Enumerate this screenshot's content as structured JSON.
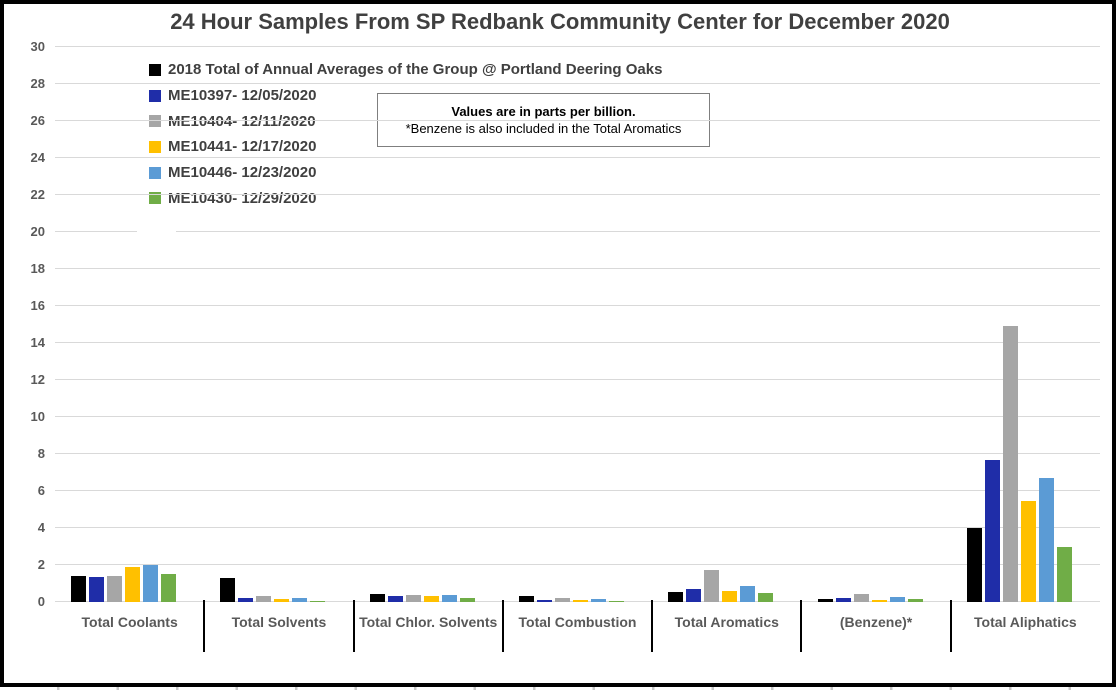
{
  "note": {
    "line1": "Values are in parts per billion.",
    "line2": "*Benzene is also included in the Total Aromatics"
  },
  "chart_data": {
    "type": "bar",
    "title": "24 Hour Samples From SP Redbank Community Center for December 2020",
    "xlabel": "",
    "ylabel": "",
    "units": "parts per billion",
    "categories": [
      "Total Coolants",
      "Total Solvents",
      "Total Chlor. Solvents",
      "Total Combustion",
      "Total Aromatics",
      "(Benzene)*",
      "Total Aliphatics"
    ],
    "series": [
      {
        "name": "2018 Total of Annual Averages of the Group @ Portland Deering Oaks",
        "color": "#000000",
        "values": [
          1.4,
          1.3,
          0.45,
          0.3,
          0.55,
          0.15,
          4.0
        ]
      },
      {
        "name": "ME10397- 12/05/2020",
        "color": "#1F2DA8",
        "values": [
          1.35,
          0.2,
          0.3,
          0.1,
          0.7,
          0.2,
          7.7
        ]
      },
      {
        "name": "ME10404- 12/11/2020",
        "color": "#A6A6A6",
        "values": [
          1.4,
          0.35,
          0.4,
          0.2,
          1.75,
          0.45,
          14.9
        ]
      },
      {
        "name": "ME10441- 12/17/2020",
        "color": "#FFC000",
        "values": [
          1.9,
          0.15,
          0.35,
          0.1,
          0.6,
          0.1,
          5.45
        ]
      },
      {
        "name": "ME10446- 12/23/2020",
        "color": "#5B9BD5",
        "values": [
          2.0,
          0.2,
          0.4,
          0.15,
          0.85,
          0.25,
          6.7
        ]
      },
      {
        "name": "ME10430- 12/29/2020",
        "color": "#70AD47",
        "values": [
          1.5,
          0.05,
          0.2,
          0.08,
          0.5,
          0.15,
          3.0
        ]
      }
    ],
    "ylim": [
      0,
      30
    ],
    "ytick_step": 2,
    "yticks": [
      0,
      2,
      4,
      6,
      8,
      10,
      12,
      14,
      16,
      18,
      20,
      22,
      24,
      26,
      28,
      30
    ],
    "grid": true,
    "legend_position": "top-left"
  }
}
